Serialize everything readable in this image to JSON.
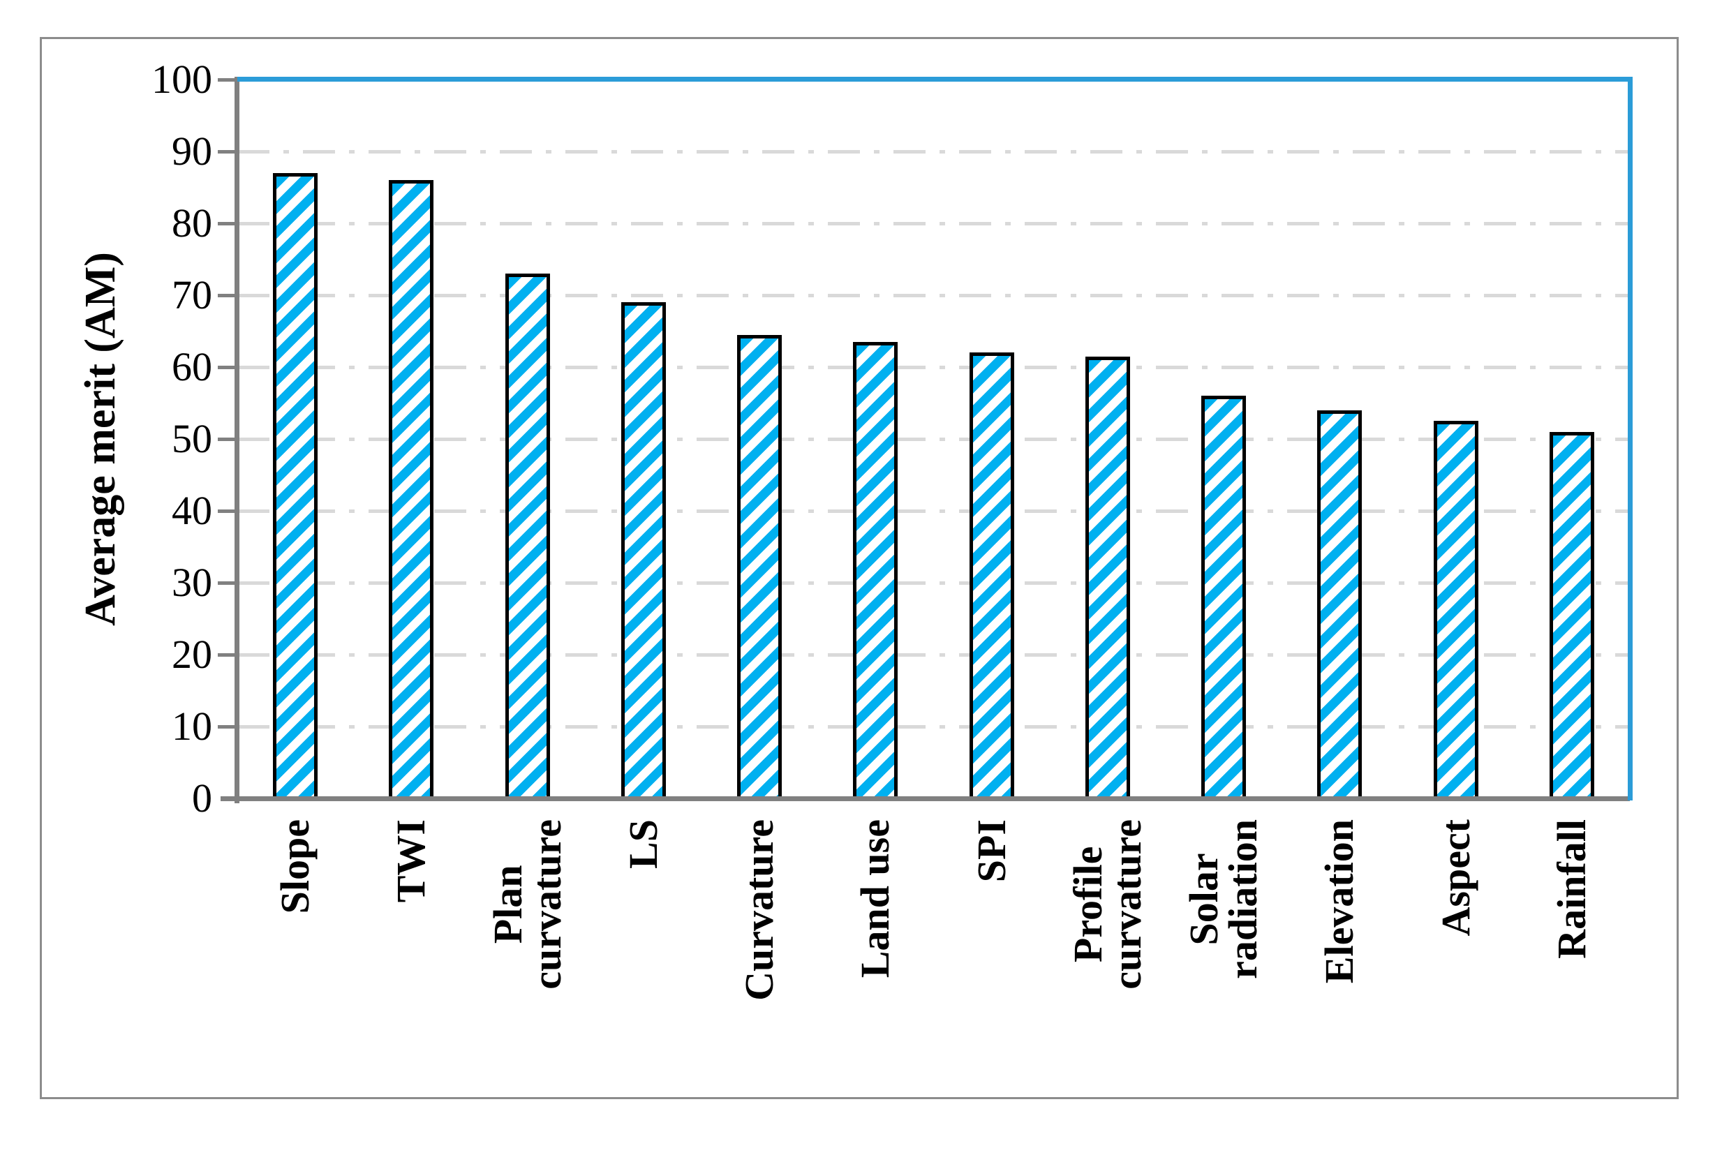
{
  "chart_data": {
    "type": "bar",
    "title": "",
    "xlabel": "",
    "ylabel": "Average merit (AM)",
    "categories": [
      "Slope",
      "TWI",
      "Plan\ncurvature",
      "LS",
      "Curvature",
      "Land use",
      "SPI",
      "Profile\ncurvature",
      "Solar\nradiation",
      "Elevation",
      "Aspect",
      "Rainfall"
    ],
    "values": [
      87,
      86,
      73,
      69,
      64.5,
      63.5,
      62,
      61.5,
      56,
      54,
      52.5,
      51
    ],
    "ylim": [
      0,
      100
    ],
    "yticks": [
      0,
      10,
      20,
      30,
      40,
      50,
      60,
      70,
      80,
      90,
      100
    ],
    "grid": "horizontal dash-dot, at 10-unit steps",
    "legend": "none",
    "bar_style": {
      "fill_pattern": "diagonal-hatch",
      "hatch_color": "#00B0F0",
      "outline_color": "#000000"
    },
    "colors": {
      "plot_top_right_border": "#2B9CD8",
      "axis": "#808080",
      "gridline": "#D9D9D9",
      "figure_border": "#8C8C8C",
      "background": "#FFFFFF"
    }
  }
}
